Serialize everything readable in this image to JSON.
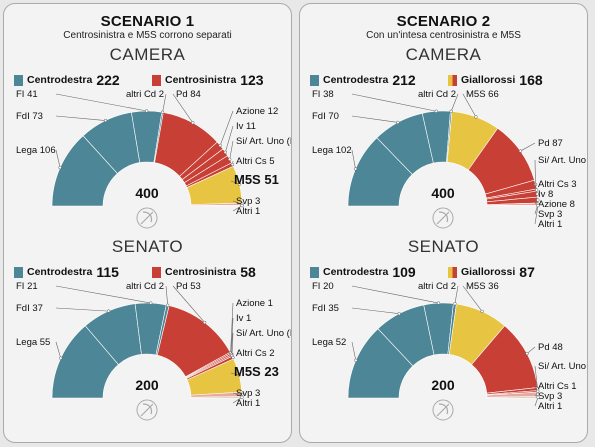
{
  "scenarios": [
    {
      "title": "SCENARIO 1",
      "subtitle": "Centrosinistra e M5S corrono separati",
      "blocks": [
        {
          "chamber": "CAMERA",
          "legend": [
            {
              "name": "Centrodestra",
              "value": "222",
              "swatch": "#4d8696"
            },
            {
              "name": "Centrosinistra",
              "value": "123",
              "swatch": "#c83f35"
            }
          ]
        },
        {
          "chamber": "SENATO",
          "legend": [
            {
              "name": "Centrodestra",
              "value": "115",
              "swatch": "#4d8696"
            },
            {
              "name": "Centrosinistra",
              "value": "58",
              "swatch": "#c83f35"
            }
          ]
        }
      ]
    },
    {
      "title": "SCENARIO 2",
      "subtitle": "Con un'intesa centrosinistra e M5S",
      "blocks": [
        {
          "chamber": "CAMERA",
          "legend": [
            {
              "name": "Centrodestra",
              "value": "212",
              "swatch": "#4d8696"
            },
            {
              "name": "Giallorossi",
              "value": "168",
              "swatch": "split"
            }
          ]
        },
        {
          "chamber": "SENATO",
          "legend": [
            {
              "name": "Centrodestra",
              "value": "109",
              "swatch": "#4d8696"
            },
            {
              "name": "Giallorossi",
              "value": "87",
              "swatch": "split"
            }
          ]
        }
      ]
    }
  ],
  "colors": {
    "centrodestra": "#4d8696",
    "centrosinistra": "#c83f35",
    "m5s": "#e7c542",
    "minor": "#e8a8a3",
    "other": "#d9c7a0"
  },
  "chart_data": [
    {
      "type": "pie",
      "scenario": "SCENARIO 1",
      "chamber": "CAMERA",
      "total": "400",
      "slices": [
        {
          "label": "Lega",
          "value": 106,
          "color": "#4d8696"
        },
        {
          "label": "FdI",
          "value": 73,
          "color": "#4d8696"
        },
        {
          "label": "FI",
          "value": 41,
          "color": "#4d8696"
        },
        {
          "label": "altri Cd",
          "value": 2,
          "color": "#4d8696"
        },
        {
          "label": "Pd",
          "value": 84,
          "color": "#c83f35"
        },
        {
          "label": "Azione",
          "value": 12,
          "color": "#c83f35"
        },
        {
          "label": "Iv",
          "value": 11,
          "color": "#c83f35"
        },
        {
          "label": "Si/ Art. Uno (Leu)",
          "value": 11,
          "color": "#c83f35"
        },
        {
          "label": "Altri Cs",
          "value": 5,
          "color": "#c83f35"
        },
        {
          "label": "M5S",
          "value": 51,
          "color": "#e7c542"
        },
        {
          "label": "Svp",
          "value": 3,
          "color": "#e8a8a3"
        },
        {
          "label": "Altri",
          "value": 1,
          "color": "#d9c7a0"
        }
      ]
    },
    {
      "type": "pie",
      "scenario": "SCENARIO 1",
      "chamber": "SENATO",
      "total": "200",
      "slices": [
        {
          "label": "Lega",
          "value": 55,
          "color": "#4d8696"
        },
        {
          "label": "FdI",
          "value": 37,
          "color": "#4d8696"
        },
        {
          "label": "FI",
          "value": 21,
          "color": "#4d8696"
        },
        {
          "label": "altri Cd",
          "value": 2,
          "color": "#4d8696"
        },
        {
          "label": "Pd",
          "value": 53,
          "color": "#c83f35"
        },
        {
          "label": "Azione",
          "value": 1,
          "color": "#c83f35"
        },
        {
          "label": "Iv",
          "value": 1,
          "color": "#c83f35"
        },
        {
          "label": "Si/ Art. Uno (Leu)",
          "value": 1,
          "color": "#c83f35"
        },
        {
          "label": "Altri Cs",
          "value": 2,
          "color": "#c83f35"
        },
        {
          "label": "M5S",
          "value": 23,
          "color": "#e7c542"
        },
        {
          "label": "Svp",
          "value": 3,
          "color": "#e8a8a3"
        },
        {
          "label": "Altri",
          "value": 1,
          "color": "#d9c7a0"
        }
      ]
    },
    {
      "type": "pie",
      "scenario": "SCENARIO 2",
      "chamber": "CAMERA",
      "total": "400",
      "slices": [
        {
          "label": "Lega",
          "value": 102,
          "color": "#4d8696"
        },
        {
          "label": "FdI",
          "value": 70,
          "color": "#4d8696"
        },
        {
          "label": "FI",
          "value": 38,
          "color": "#4d8696"
        },
        {
          "label": "altri Cd",
          "value": 2,
          "color": "#4d8696"
        },
        {
          "label": "M5S",
          "value": 66,
          "color": "#e7c542"
        },
        {
          "label": "Pd",
          "value": 87,
          "color": "#c83f35"
        },
        {
          "label": "Si/ Art. Uno (Leu)",
          "value": 12,
          "color": "#c83f35"
        },
        {
          "label": "Altri Cs",
          "value": 3,
          "color": "#c83f35"
        },
        {
          "label": "Iv",
          "value": 8,
          "color": "#c83f35"
        },
        {
          "label": "Azione",
          "value": 8,
          "color": "#c83f35"
        },
        {
          "label": "Svp",
          "value": 3,
          "color": "#e8a8a3"
        },
        {
          "label": "Altri",
          "value": 1,
          "color": "#d9c7a0"
        }
      ]
    },
    {
      "type": "pie",
      "scenario": "SCENARIO 2",
      "chamber": "SENATO",
      "total": "200",
      "slices": [
        {
          "label": "Lega",
          "value": 52,
          "color": "#4d8696"
        },
        {
          "label": "FdI",
          "value": 35,
          "color": "#4d8696"
        },
        {
          "label": "FI",
          "value": 20,
          "color": "#4d8696"
        },
        {
          "label": "altri Cd",
          "value": 2,
          "color": "#4d8696"
        },
        {
          "label": "M5S",
          "value": 36,
          "color": "#e7c542"
        },
        {
          "label": "Pd",
          "value": 48,
          "color": "#c83f35"
        },
        {
          "label": "Si/ Art. Uno (Leu)",
          "value": 2,
          "color": "#c83f35"
        },
        {
          "label": "Altri Cs",
          "value": 1,
          "color": "#c83f35"
        },
        {
          "label": "Svp",
          "value": 3,
          "color": "#e8a8a3"
        },
        {
          "label": "Altri",
          "value": 1,
          "color": "#d9c7a0"
        }
      ]
    }
  ]
}
